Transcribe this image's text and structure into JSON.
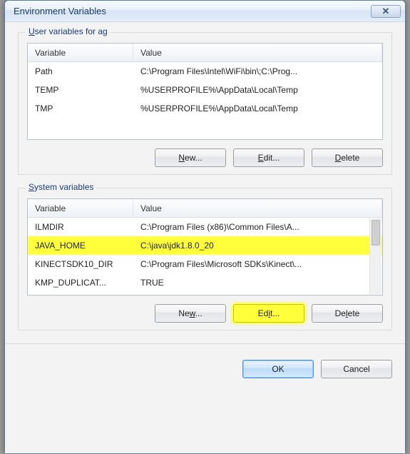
{
  "window": {
    "title": "Environment Variables",
    "close_glyph": "✕"
  },
  "user_section": {
    "label_prefix": "U",
    "label_rest": "ser variables for ag",
    "columns": {
      "variable": "Variable",
      "value": "Value"
    },
    "rows": [
      {
        "variable": "Path",
        "value": "C:\\Program Files\\Intel\\WiFi\\bin\\;C:\\Prog..."
      },
      {
        "variable": "TEMP",
        "value": "%USERPROFILE%\\AppData\\Local\\Temp"
      },
      {
        "variable": "TMP",
        "value": "%USERPROFILE%\\AppData\\Local\\Temp"
      }
    ],
    "buttons": {
      "new_ul": "N",
      "new_rest": "ew...",
      "edit_ul": "E",
      "edit_rest": "dit...",
      "delete_ul": "D",
      "delete_rest": "elete"
    }
  },
  "system_section": {
    "label_prefix": "S",
    "label_rest": "ystem variables",
    "columns": {
      "variable": "Variable",
      "value": "Value"
    },
    "rows": [
      {
        "variable": "ILMDIR",
        "value": "C:\\Program Files (x86)\\Common Files\\A...",
        "highlight": false
      },
      {
        "variable": "JAVA_HOME",
        "value": "C:\\java\\jdk1.8.0_20",
        "highlight": true
      },
      {
        "variable": "KINECTSDK10_DIR",
        "value": "C:\\Program Files\\Microsoft SDKs\\Kinect\\...",
        "highlight": false
      },
      {
        "variable": "KMP_DUPLICAT...",
        "value": "TRUE",
        "highlight": false
      }
    ],
    "buttons": {
      "new_ul": "w",
      "new_pre": "Ne",
      "new_post": "...",
      "edit_ul": "i",
      "edit_pre": "Ed",
      "edit_post": "t...",
      "delete_ul": "l",
      "delete_pre": "De",
      "delete_post": "ete"
    },
    "edit_highlight": true
  },
  "dialog_buttons": {
    "ok": "OK",
    "cancel": "Cancel"
  },
  "colors": {
    "highlight": "#ffff3c",
    "window_border": "#5a7ea0",
    "client_bg": "#f3f3f3"
  }
}
